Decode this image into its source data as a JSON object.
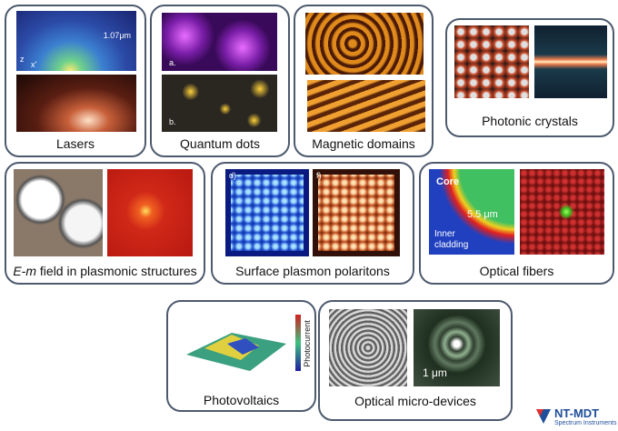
{
  "panels": [
    {
      "label": "Lasers",
      "image_texts": [
        "1.07μm",
        "z",
        "x'"
      ]
    },
    {
      "label": "Quantum dots",
      "image_texts": [
        "a.",
        "b."
      ]
    },
    {
      "label": "Magnetic domains"
    },
    {
      "label": "Photonic crystals"
    },
    {
      "label_italic": "E-m",
      "label": "field in plasmonic structures"
    },
    {
      "label": "Surface plasmon polaritons",
      "image_texts": [
        "d)",
        "f)"
      ]
    },
    {
      "label": "Optical fibers",
      "image_texts": [
        "Core",
        "5.5 μm",
        "Inner",
        "cladding"
      ]
    },
    {
      "label": "Photovoltaics",
      "image_texts": [
        "Photocurrent"
      ]
    },
    {
      "label": "Optical micro-devices",
      "image_texts": [
        "1 μm"
      ]
    }
  ],
  "logo": {
    "name": "NT-MDT",
    "subtitle": "Spectrum Instruments"
  }
}
